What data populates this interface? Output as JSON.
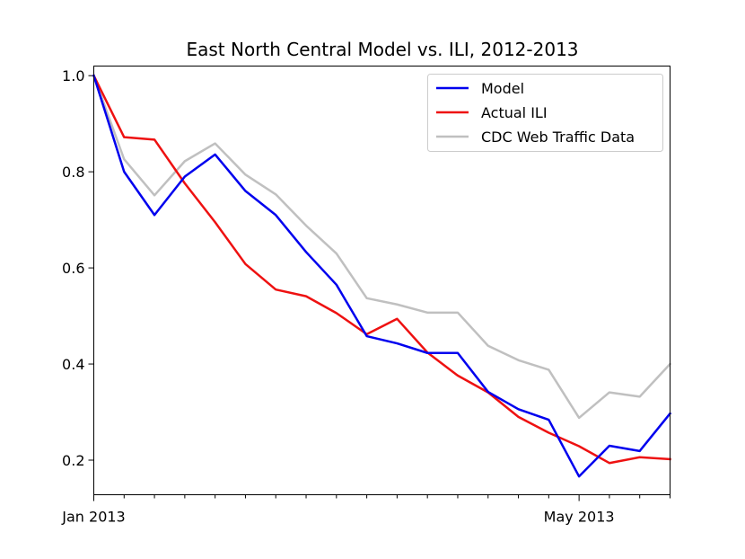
{
  "chart_data": {
    "type": "line",
    "title": "East North Central Model vs. ILI, 2012-2013",
    "xlabel": "",
    "ylabel": "",
    "x_index": [
      0,
      1,
      2,
      3,
      4,
      5,
      6,
      7,
      8,
      9,
      10,
      11,
      12,
      13,
      14,
      15,
      16,
      17,
      18,
      19
    ],
    "xlim": [
      0,
      19
    ],
    "ylim": [
      0.128,
      1.02
    ],
    "y_ticks": [
      0.2,
      0.4,
      0.6,
      0.8,
      1.0
    ],
    "y_tick_labels": [
      "0.2",
      "0.4",
      "0.6",
      "0.8",
      "1.0"
    ],
    "x_major_ticks": [
      {
        "index": 0,
        "label": "Jan 2013"
      },
      {
        "index": 16,
        "label": "May 2013"
      }
    ],
    "x_minor_ticks": [
      1,
      2,
      3,
      4,
      5,
      6,
      7,
      8,
      9,
      10,
      11,
      12,
      13,
      14,
      15,
      17,
      18,
      19
    ],
    "grid": false,
    "legend_position": "top-right",
    "series": [
      {
        "name": "Model",
        "color": "#0000ee",
        "values": [
          1.0,
          0.8,
          0.71,
          0.79,
          0.836,
          0.76,
          0.71,
          0.633,
          0.565,
          0.458,
          0.443,
          0.423,
          0.423,
          0.342,
          0.306,
          0.284,
          0.166,
          0.23,
          0.219,
          0.297
        ]
      },
      {
        "name": "Actual ILI",
        "color": "#ee1111",
        "values": [
          1.0,
          0.872,
          0.867,
          0.776,
          0.695,
          0.608,
          0.555,
          0.541,
          0.506,
          0.462,
          0.494,
          0.424,
          0.376,
          0.341,
          0.29,
          0.257,
          0.229,
          0.194,
          0.206,
          0.202
        ]
      },
      {
        "name": "CDC Web Traffic Data",
        "color": "#c0c0c0",
        "values": [
          1.0,
          0.826,
          0.751,
          0.822,
          0.859,
          0.794,
          0.753,
          0.688,
          0.63,
          0.537,
          0.524,
          0.507,
          0.507,
          0.438,
          0.408,
          0.388,
          0.288,
          0.341,
          0.332,
          0.4
        ]
      }
    ]
  }
}
